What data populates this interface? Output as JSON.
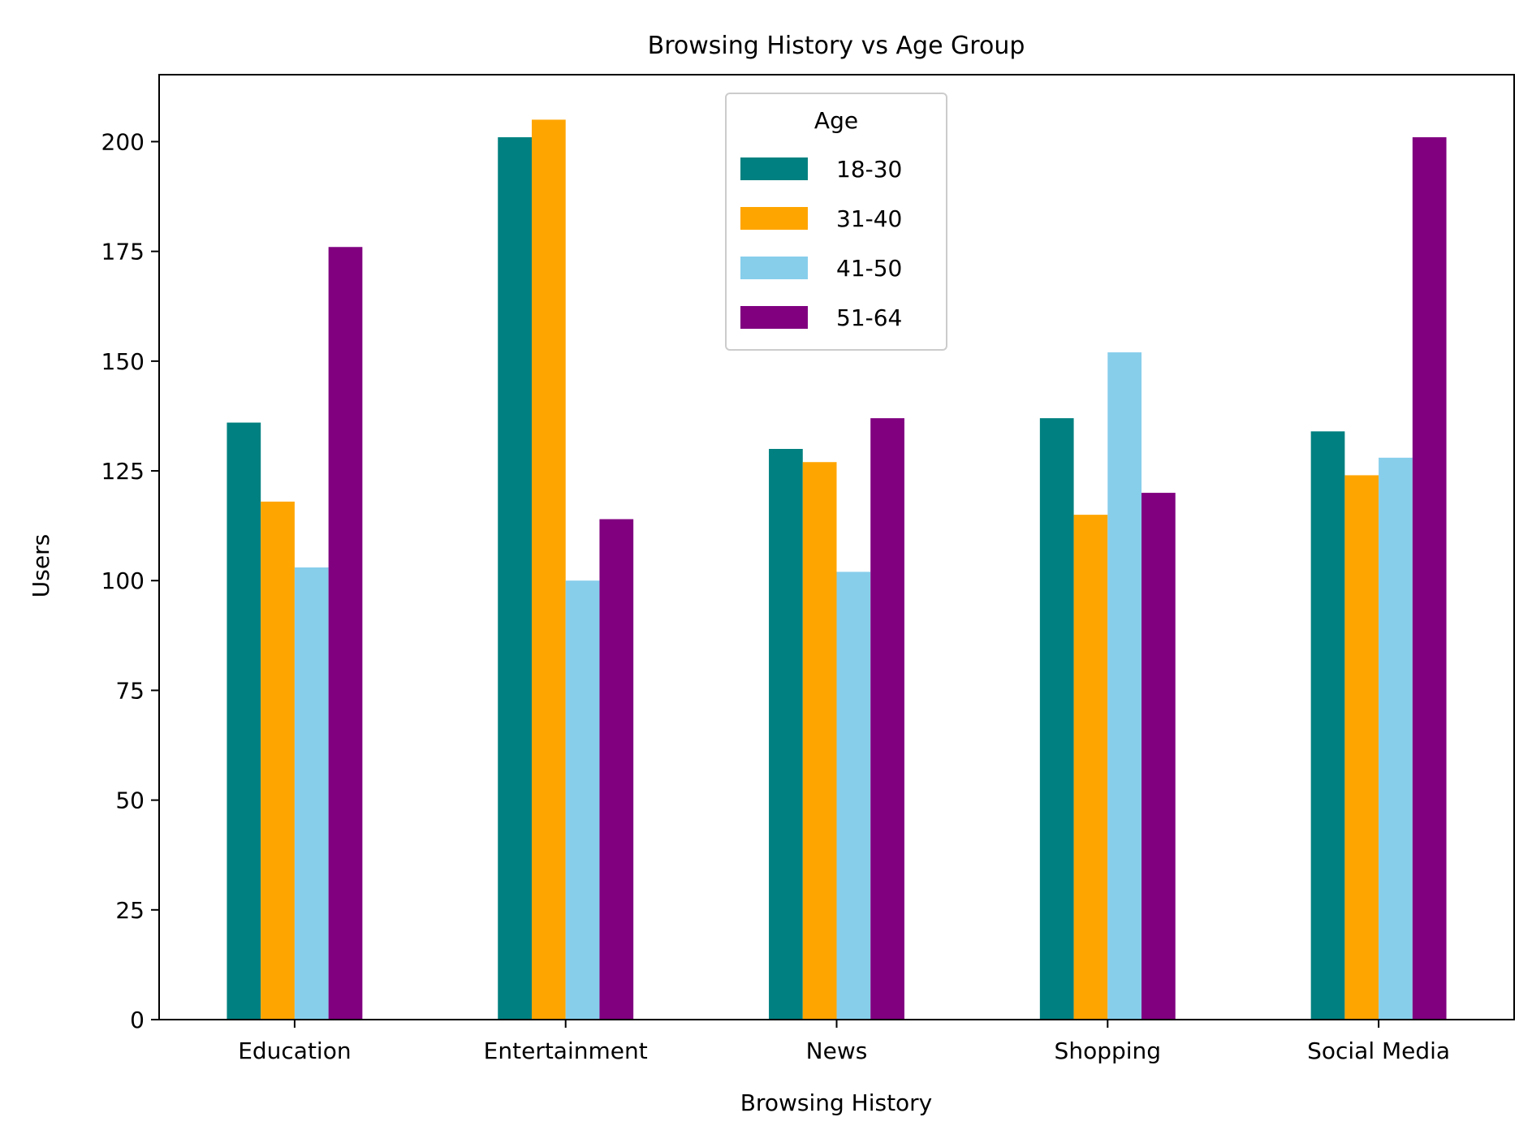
{
  "chart_data": {
    "type": "bar",
    "title": "Browsing History vs Age Group",
    "xlabel": "Browsing History",
    "ylabel": "Users",
    "categories": [
      "Education",
      "Entertainment",
      "News",
      "Shopping",
      "Social Media"
    ],
    "series": [
      {
        "name": "18-30",
        "color": "#008080",
        "values": [
          136,
          201,
          130,
          137,
          134
        ]
      },
      {
        "name": "31-40",
        "color": "#FFA500",
        "values": [
          118,
          205,
          127,
          115,
          124
        ]
      },
      {
        "name": "41-50",
        "color": "#87CEEB",
        "values": [
          103,
          100,
          102,
          152,
          128
        ]
      },
      {
        "name": "51-64",
        "color": "#800080",
        "values": [
          176,
          114,
          137,
          120,
          201
        ]
      }
    ],
    "ylim": [
      0,
      215.25
    ],
    "yticks": [
      0,
      25,
      50,
      75,
      100,
      125,
      150,
      175,
      200
    ],
    "legend": {
      "title": "Age",
      "position": "top-center"
    },
    "grid": false
  }
}
